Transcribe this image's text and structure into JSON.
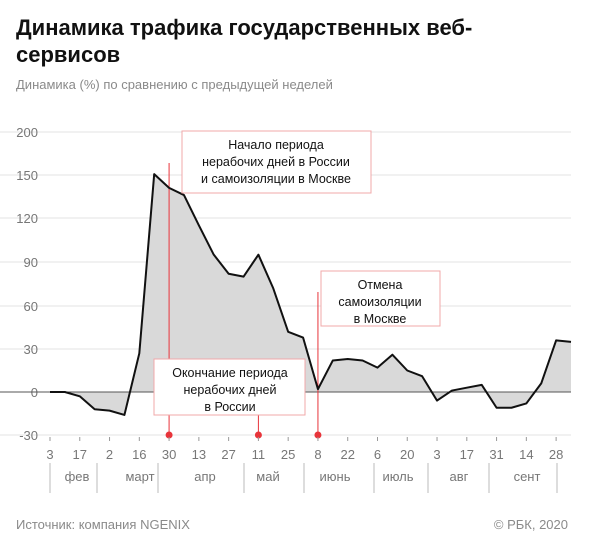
{
  "header": {
    "title": "Динамика трафика государственных веб-сервисов",
    "subtitle": "Динамика (%) по сравнению с предыдущей неделей"
  },
  "footer": {
    "source": "Источник: компания NGENIX",
    "copyright": "© РБК, 2020"
  },
  "chart_data": {
    "type": "area",
    "ylim": [
      -30,
      200
    ],
    "yticks": [
      -30,
      0,
      30,
      60,
      90,
      120,
      150,
      200
    ],
    "day_ticks": [
      "3",
      "17",
      "2",
      "16",
      "30",
      "13",
      "27",
      "11",
      "25",
      "8",
      "22",
      "6",
      "20",
      "3",
      "17",
      "31",
      "14",
      "28"
    ],
    "months": [
      "фев",
      "март",
      "апр",
      "май",
      "июнь",
      "июль",
      "авг",
      "сент"
    ],
    "grid": true,
    "series": [
      {
        "values": [
          0,
          0,
          -3,
          -12,
          -13,
          -16,
          27,
          151,
          141,
          136,
          115,
          95,
          82,
          80,
          95,
          72,
          42,
          38,
          2,
          22,
          23,
          22,
          17,
          26,
          15,
          11,
          -6,
          1,
          3,
          5,
          -11,
          -11,
          -8,
          6,
          36,
          35
        ]
      }
    ],
    "annotations": [
      {
        "lines": [
          "Начало периода",
          "нерабочих дней в России",
          "и самоизоляции в Москве"
        ]
      },
      {
        "lines": [
          "Окончание периода",
          "нерабочих дней",
          "в России"
        ]
      },
      {
        "lines": [
          "Отмена",
          "самоизоляции",
          "в Москве"
        ]
      }
    ],
    "colors": {
      "area_fill": "#d9d9d9",
      "line": "#111111",
      "accent": "#e8343a",
      "grid": "#e3e3e3"
    }
  }
}
